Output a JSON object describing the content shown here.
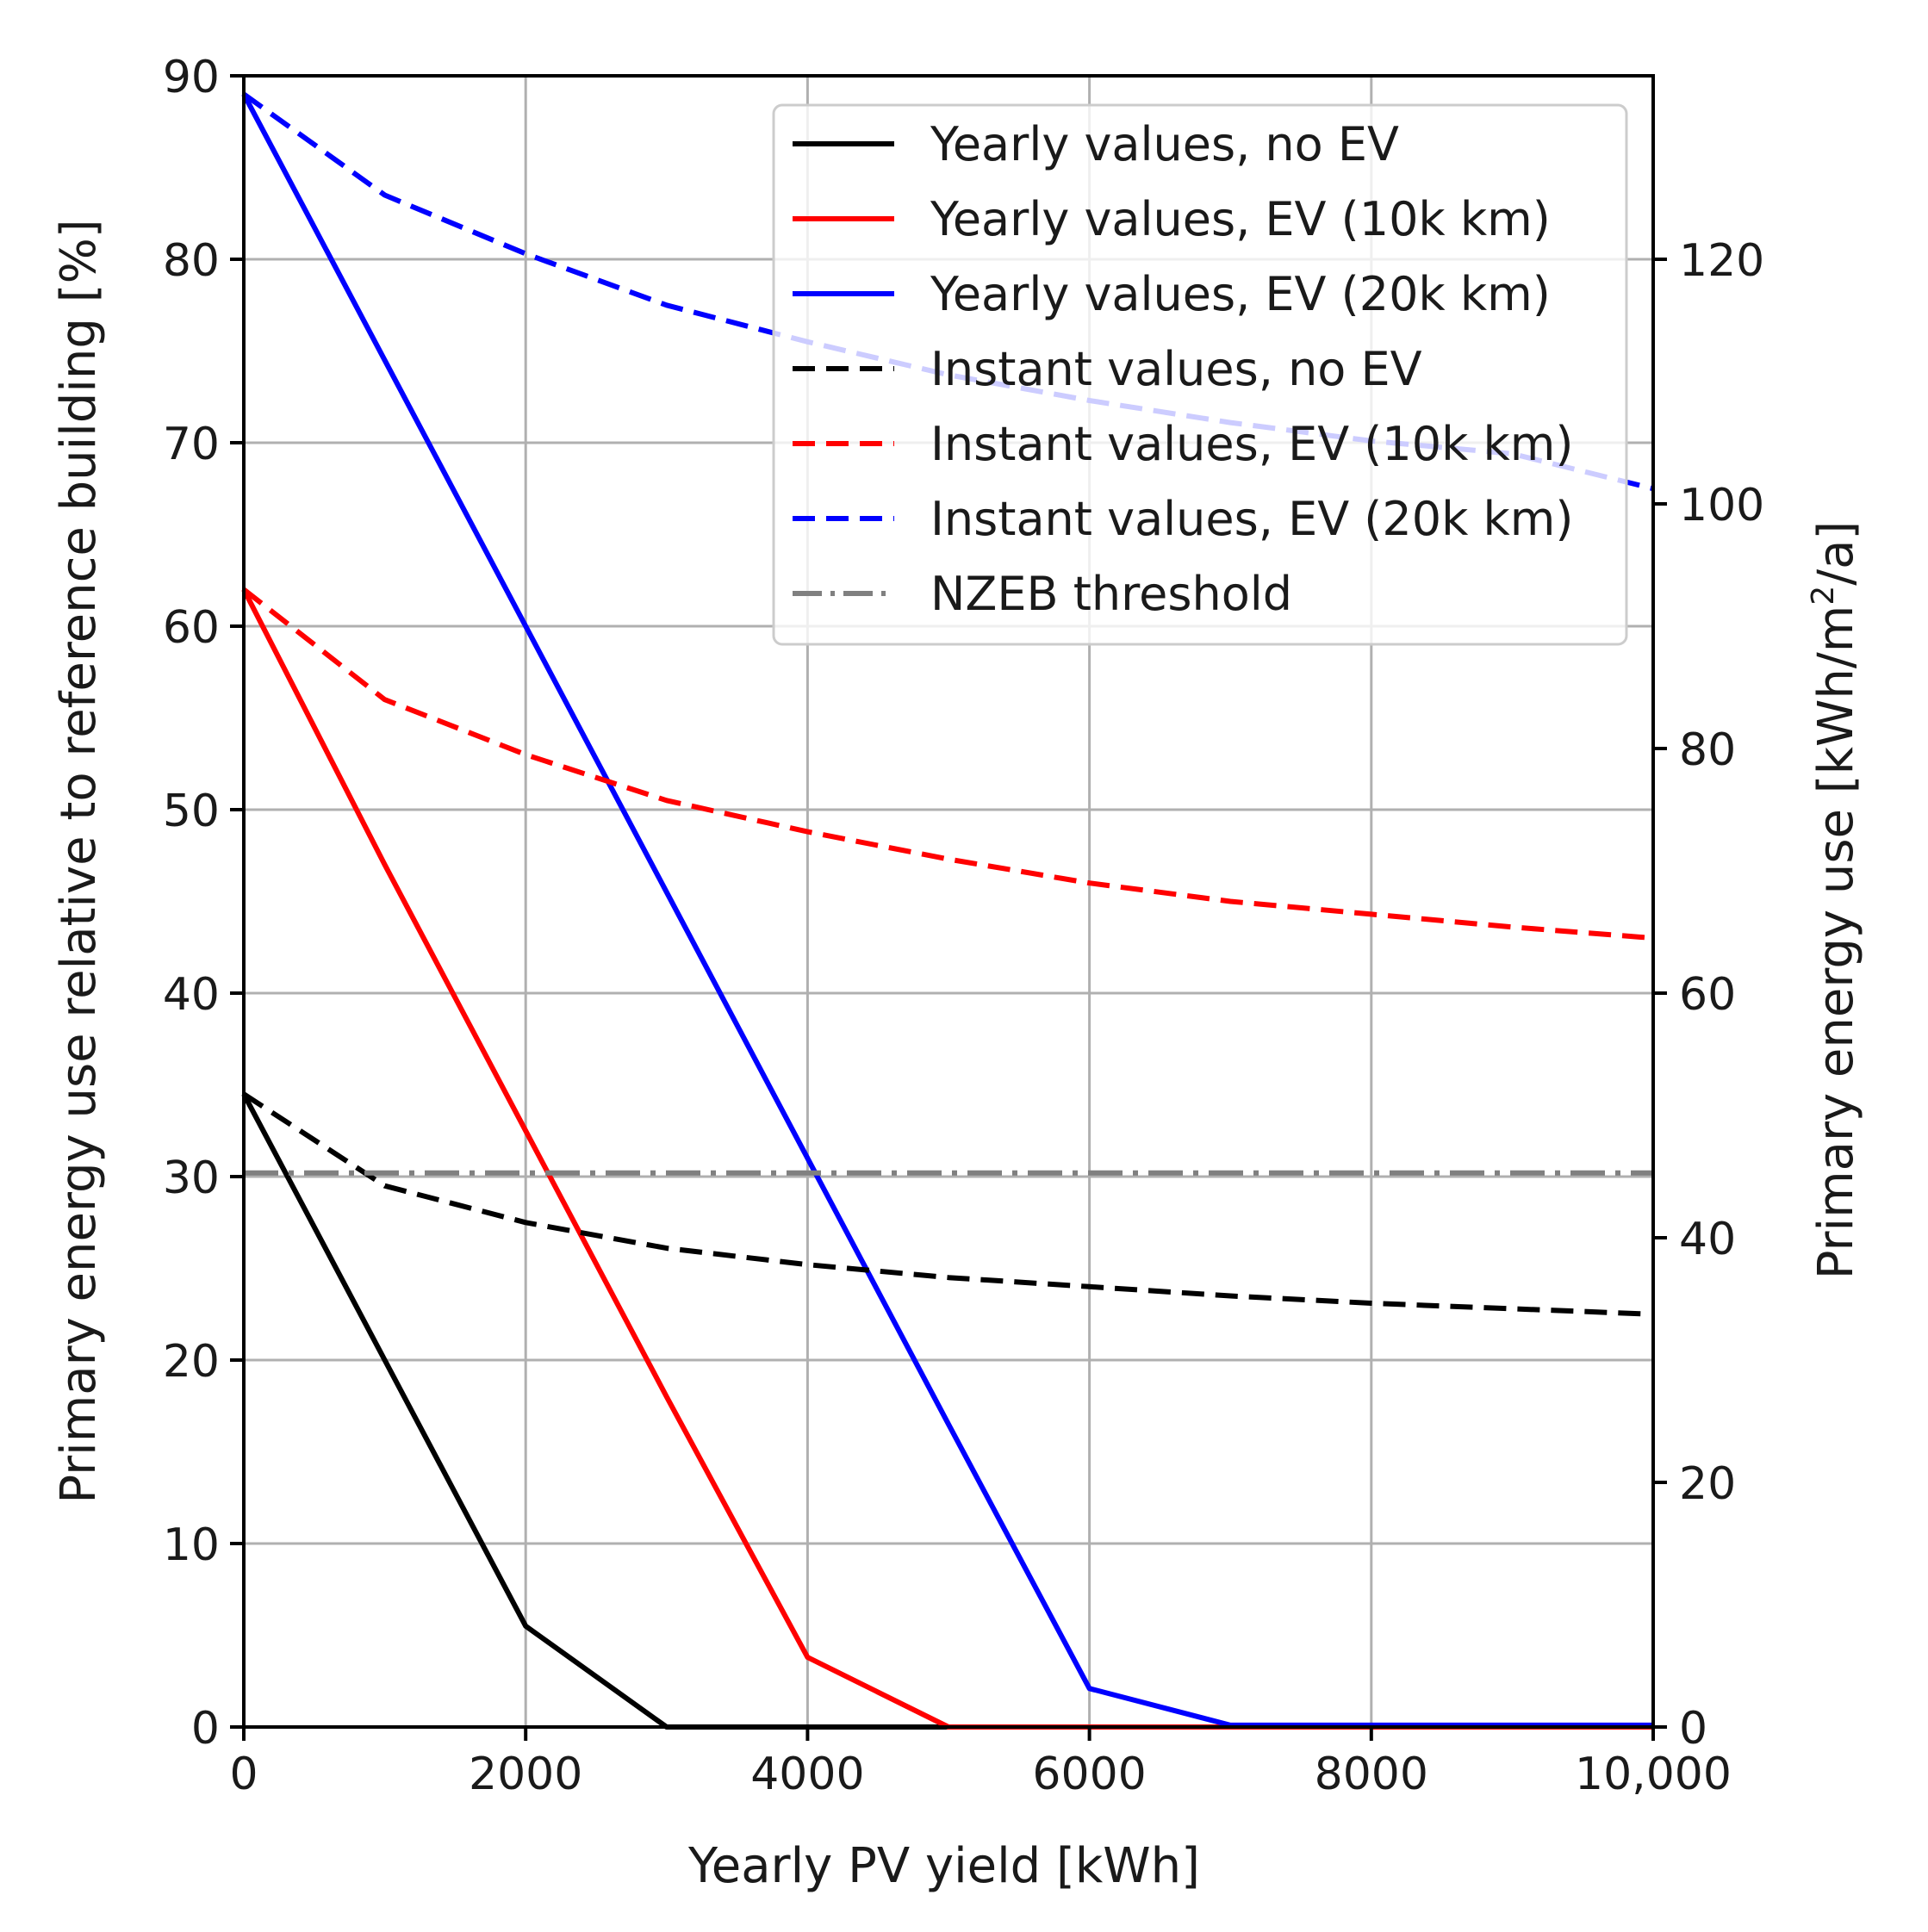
{
  "chart_data": {
    "type": "line",
    "xlabel": "Yearly PV yield [kWh]",
    "ylabel": "Primary energy use relative to reference building [%]",
    "y2label": {
      "main": "Primary energy use [kWh/m",
      "sup": "2",
      "tail": "/a]"
    },
    "xlim": [
      0,
      10000
    ],
    "ylim": [
      0,
      90
    ],
    "y2lim": [
      0,
      135
    ],
    "xticks": [
      0,
      2000,
      4000,
      6000,
      8000,
      10000
    ],
    "xtick_labels": [
      "0",
      "2000",
      "4000",
      "6000",
      "8000",
      "10,000"
    ],
    "yticks": [
      0,
      10,
      20,
      30,
      40,
      50,
      60,
      70,
      80,
      90
    ],
    "ytick_labels": [
      "0",
      "10",
      "20",
      "30",
      "40",
      "50",
      "60",
      "70",
      "80",
      "90"
    ],
    "y2ticks": [
      0,
      20,
      40,
      60,
      80,
      100,
      120
    ],
    "y2tick_labels": [
      "0",
      "20",
      "40",
      "60",
      "80",
      "100",
      "120"
    ],
    "grid": true,
    "legend_position": "top-right",
    "series": [
      {
        "name": "Yearly values, no EV",
        "color": "#000000",
        "style": "solid",
        "x": [
          0,
          1000,
          2000,
          3000,
          4000,
          5000,
          6000,
          7000,
          8000,
          9000,
          10000
        ],
        "y": [
          34.5,
          20,
          5.5,
          0,
          0,
          0,
          0,
          0,
          0,
          0,
          0
        ]
      },
      {
        "name": "Yearly values, EV (10k km)",
        "color": "#ff0000",
        "style": "solid",
        "x": [
          0,
          1000,
          2000,
          3000,
          4000,
          5000,
          6000,
          7000,
          8000,
          9000,
          10000
        ],
        "y": [
          62,
          47,
          32.5,
          18,
          3.8,
          0,
          0,
          0,
          0,
          0,
          0
        ]
      },
      {
        "name": "Yearly values, EV (20k km)",
        "color": "#0000ff",
        "style": "solid",
        "x": [
          0,
          1000,
          2000,
          3000,
          4000,
          5000,
          6000,
          7000,
          8000,
          9000,
          10000
        ],
        "y": [
          89,
          74.5,
          60,
          45.5,
          31,
          16.5,
          2.1,
          0.1,
          0.1,
          0.1,
          0.1
        ]
      },
      {
        "name": "Instant values, no EV",
        "color": "#000000",
        "style": "dashed",
        "x": [
          0,
          1000,
          2000,
          3000,
          4000,
          5000,
          6000,
          7000,
          8000,
          9000,
          10000
        ],
        "y": [
          34.5,
          29.5,
          27.5,
          26.1,
          25.2,
          24.5,
          24,
          23.5,
          23.1,
          22.8,
          22.5
        ]
      },
      {
        "name": "Instant values, EV (10k km)",
        "color": "#ff0000",
        "style": "dashed",
        "x": [
          0,
          1000,
          2000,
          3000,
          4000,
          5000,
          6000,
          7000,
          8000,
          9000,
          10000
        ],
        "y": [
          62,
          56,
          53,
          50.5,
          48.8,
          47.3,
          46,
          45,
          44.3,
          43.6,
          43
        ]
      },
      {
        "name": "Instant values, EV (20k km)",
        "color": "#0000ff",
        "style": "dashed",
        "x": [
          0,
          1000,
          2000,
          3000,
          4000,
          5000,
          6000,
          7000,
          8000,
          9000,
          10000
        ],
        "y": [
          89,
          83.5,
          80.3,
          77.5,
          75.5,
          73.7,
          72.3,
          71.1,
          70.1,
          69.4,
          67.5
        ]
      },
      {
        "name": "NZEB threshold",
        "color": "#808080",
        "style": "dashdot",
        "x": [
          0,
          10000
        ],
        "y": [
          30.2,
          30.2
        ]
      }
    ]
  }
}
